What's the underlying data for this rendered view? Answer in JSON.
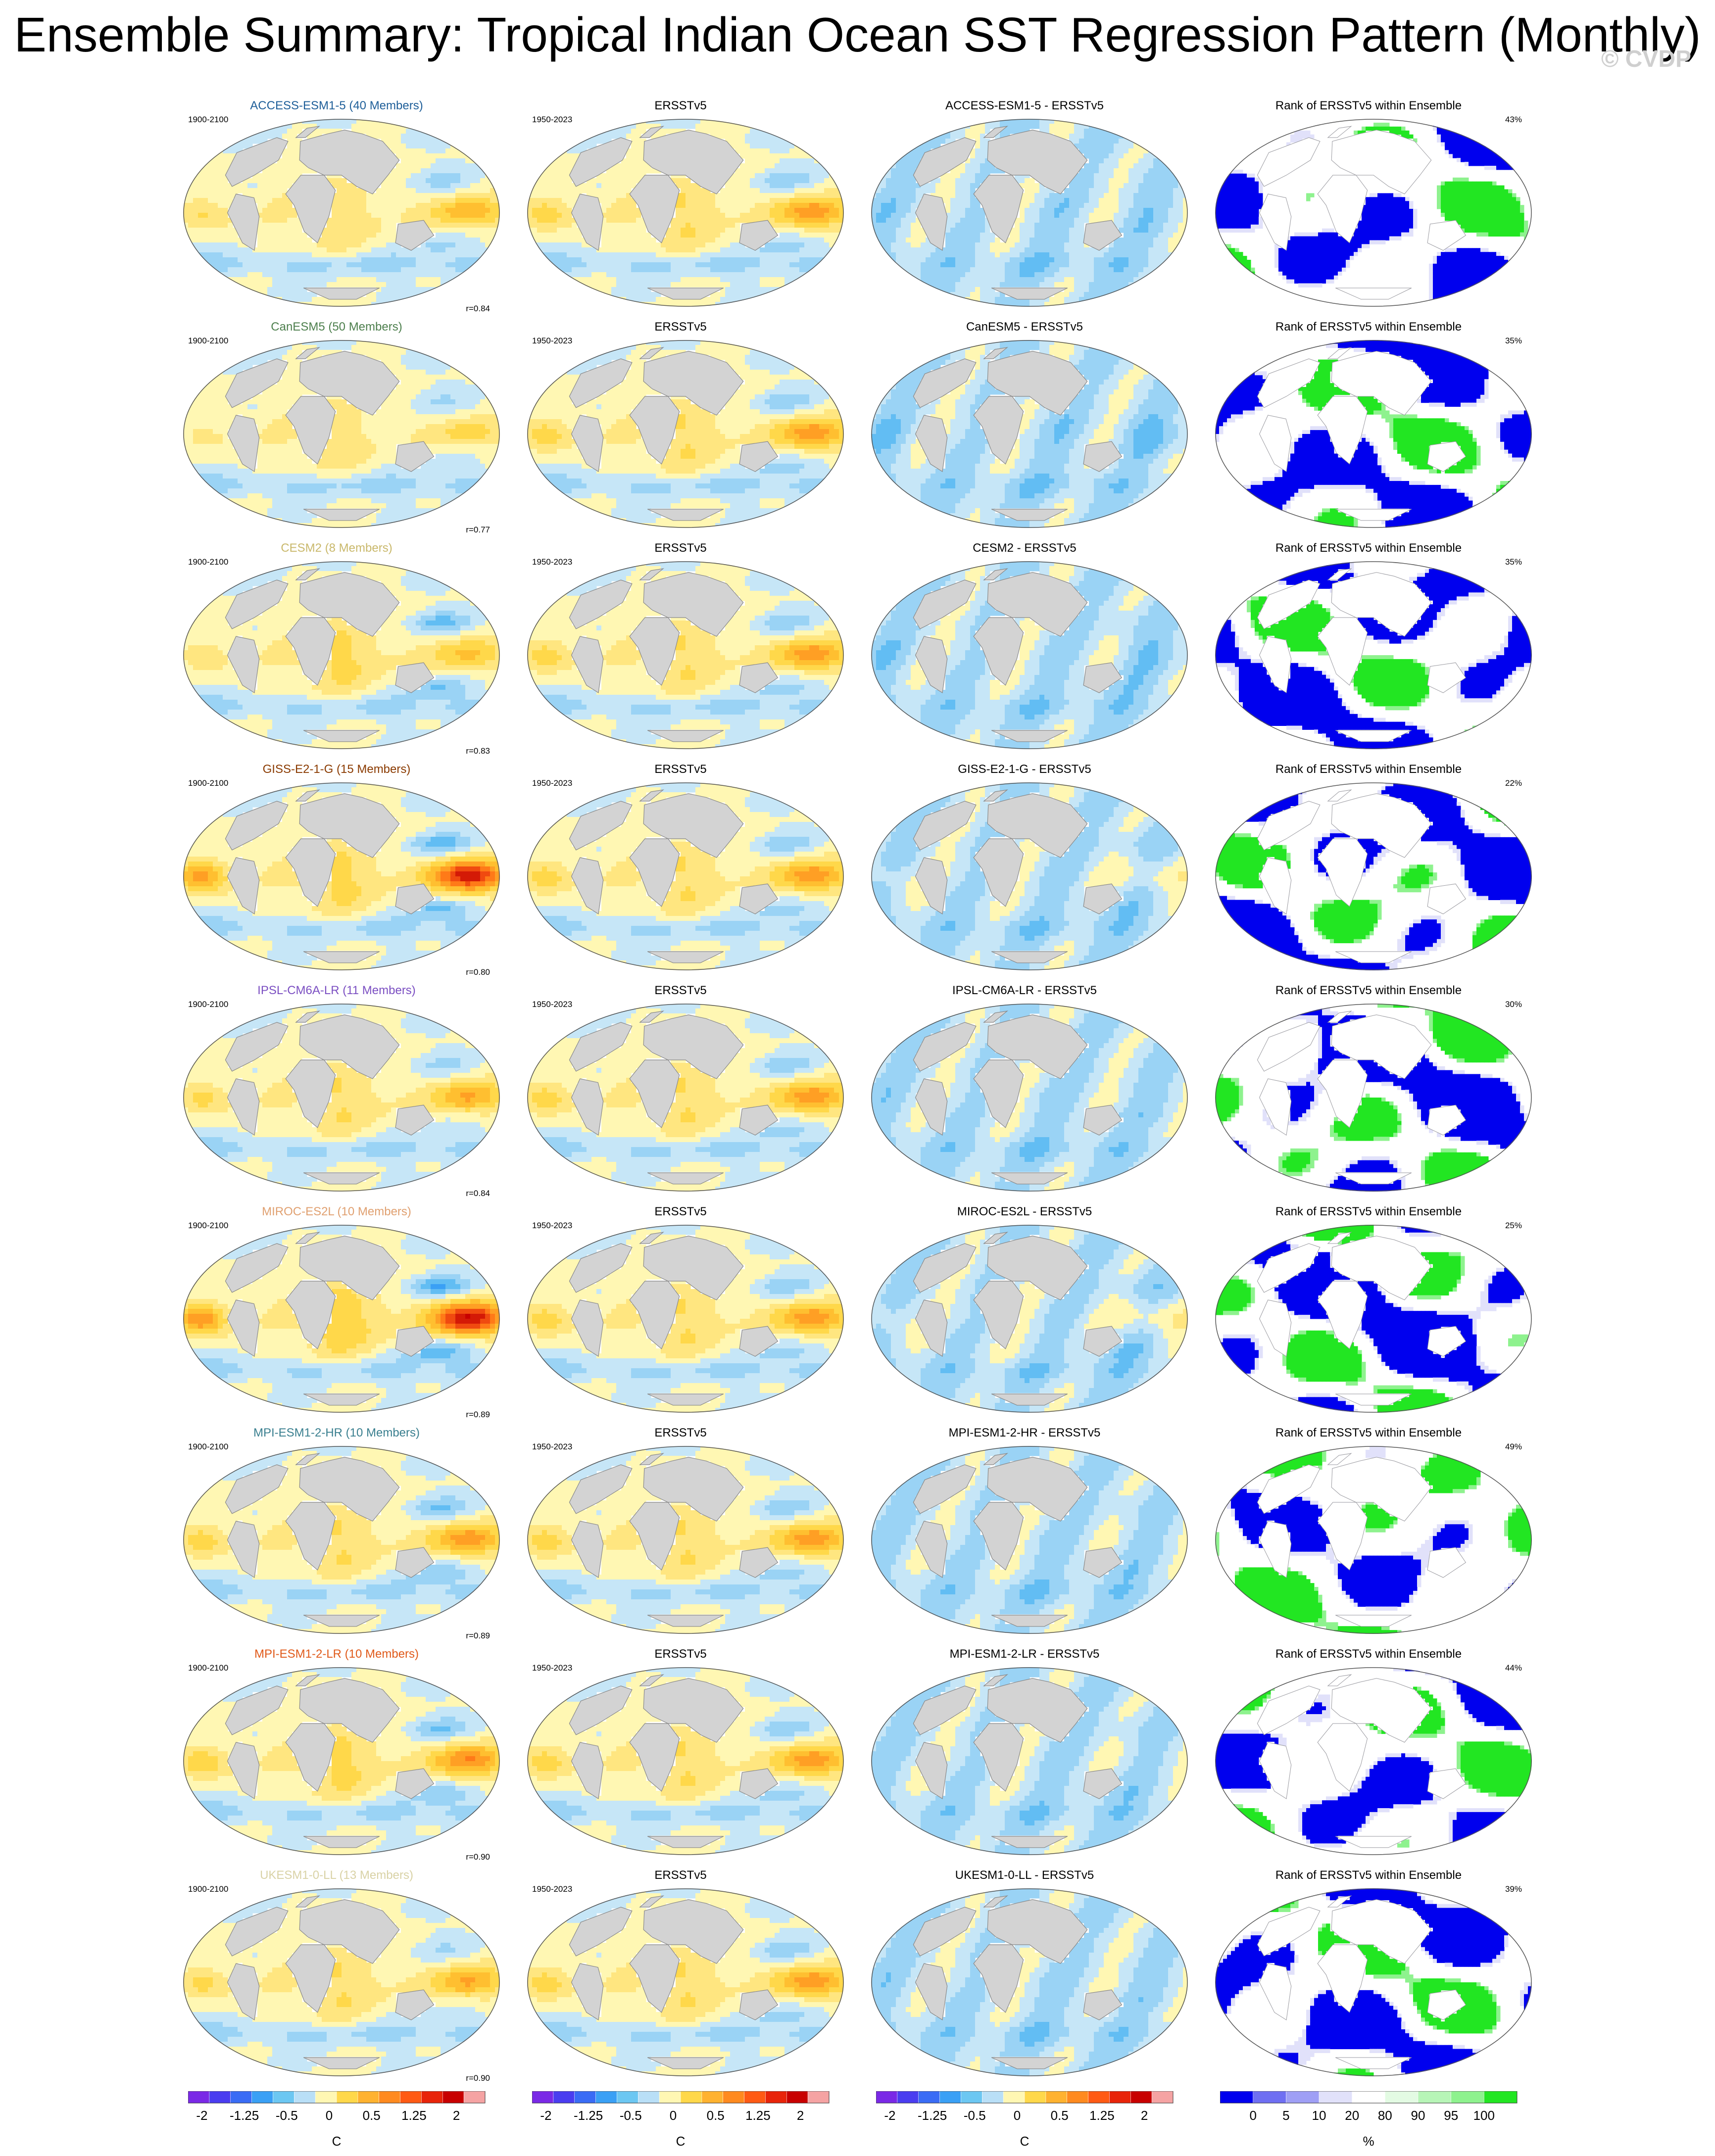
{
  "title": "Ensemble Summary: Tropical Indian Ocean SST Regression Pattern (Monthly)",
  "watermark": "© CVDP",
  "chart_data": {
    "type": "heatmap",
    "layout": "9 rows x 4 columns of global map panels",
    "colors": {
      "land": "#d3d3d3",
      "coastline": "#888888",
      "regression_scale": [
        "#7a29e6",
        "#4a3df0",
        "#3a6cf5",
        "#3aa0f5",
        "#6cc7f2",
        "#b9dff7",
        "#fff7b3",
        "#ffd84a",
        "#ffb230",
        "#ff8a1f",
        "#ff5a14",
        "#e8240a",
        "#c80000",
        "#f5a3a3"
      ],
      "rank_scale": [
        "#0000ee",
        "#6f6ff2",
        "#9f9ff5",
        "#e1e1fa",
        "#ffffff",
        "#e3fbe3",
        "#b7f5b7",
        "#8ef28e",
        "#22e622"
      ]
    },
    "rows": [
      {
        "model": "ACCESS-ESM1-5 (40 Members)",
        "model_color": "#1f5f99",
        "diff_title": "ACCESS-ESM1-5 - ERSSTv5",
        "pattern_corr": "r=0.84",
        "rank_pct": "43%",
        "enso_amp": 0.9,
        "indian": 0.8,
        "cold_tongue": 0.5,
        "rank_blue_frac": 0.45
      },
      {
        "model": "CanESM5 (50 Members)",
        "model_color": "#4d7f4d",
        "diff_title": "CanESM5 - ERSSTv5",
        "pattern_corr": "r=0.77",
        "rank_pct": "35%",
        "enso_amp": 0.6,
        "indian": 0.7,
        "cold_tongue": 0.3,
        "rank_blue_frac": 0.5
      },
      {
        "model": "CESM2 (8 Members)",
        "model_color": "#c9b86b",
        "diff_title": "CESM2 - ERSSTv5",
        "pattern_corr": "r=0.83",
        "rank_pct": "35%",
        "enso_amp": 0.8,
        "indian": 1.0,
        "cold_tongue": 0.9,
        "rank_blue_frac": 0.55
      },
      {
        "model": "GISS-E2-1-G (15 Members)",
        "model_color": "#8a3a00",
        "diff_title": "GISS-E2-1-G - ERSSTv5",
        "pattern_corr": "r=0.80",
        "rank_pct": "22%",
        "enso_amp": 1.8,
        "indian": 1.0,
        "cold_tongue": 1.0,
        "rank_blue_frac": 0.55
      },
      {
        "model": "IPSL-CM6A-LR (11 Members)",
        "model_color": "#7b4fc2",
        "diff_title": "IPSL-CM6A-LR - ERSSTv5",
        "pattern_corr": "r=0.84",
        "rank_pct": "30%",
        "enso_amp": 1.0,
        "indian": 0.9,
        "cold_tongue": 0.4,
        "rank_blue_frac": 0.6
      },
      {
        "model": "MIROC-ES2L (10 Members)",
        "model_color": "#e0a070",
        "diff_title": "MIROC-ES2L - ERSSTv5",
        "pattern_corr": "r=0.89",
        "rank_pct": "25%",
        "enso_amp": 1.9,
        "indian": 1.2,
        "cold_tongue": 1.2,
        "rank_blue_frac": 0.6
      },
      {
        "model": "MPI-ESM1-2-HR (10 Members)",
        "model_color": "#3a7f8f",
        "diff_title": "MPI-ESM1-2-HR - ERSSTv5",
        "pattern_corr": "r=0.89",
        "rank_pct": "49%",
        "enso_amp": 1.1,
        "indian": 0.9,
        "cold_tongue": 0.8,
        "rank_blue_frac": 0.4
      },
      {
        "model": "MPI-ESM1-2-LR (10 Members)",
        "model_color": "#e05a1a",
        "diff_title": "MPI-ESM1-2-LR - ERSSTv5",
        "pattern_corr": "r=0.90",
        "rank_pct": "44%",
        "enso_amp": 1.2,
        "indian": 1.0,
        "cold_tongue": 0.8,
        "rank_blue_frac": 0.45
      },
      {
        "model": "UKESM1-0-LL (13 Members)",
        "model_color": "#d9d2a6",
        "diff_title": "UKESM1-0-LL - ERSSTv5",
        "pattern_corr": "r=0.90",
        "rank_pct": "39%",
        "enso_amp": 1.0,
        "indian": 0.9,
        "cold_tongue": 0.3,
        "rank_blue_frac": 0.5
      }
    ],
    "model_period": "1900-2100",
    "obs_title": "ERSSTv5",
    "obs_period": "1950-2023",
    "rank_title": "Rank of ERSSTv5 within Ensemble",
    "colorbars": [
      {
        "type": "regression",
        "tick_labels": [
          "-2",
          "-1.25",
          "-0.5",
          "0",
          "0.5",
          "1.25",
          "2"
        ],
        "unit": "C"
      },
      {
        "type": "regression",
        "tick_labels": [
          "-2",
          "-1.25",
          "-0.5",
          "0",
          "0.5",
          "1.25",
          "2"
        ],
        "unit": "C"
      },
      {
        "type": "regression",
        "tick_labels": [
          "-2",
          "-1.25",
          "-0.5",
          "0",
          "0.5",
          "1.25",
          "2"
        ],
        "unit": "C"
      },
      {
        "type": "rank",
        "tick_labels": [
          "0",
          "5",
          "10",
          "20",
          "80",
          "90",
          "95",
          "100"
        ],
        "unit": "%"
      }
    ]
  }
}
